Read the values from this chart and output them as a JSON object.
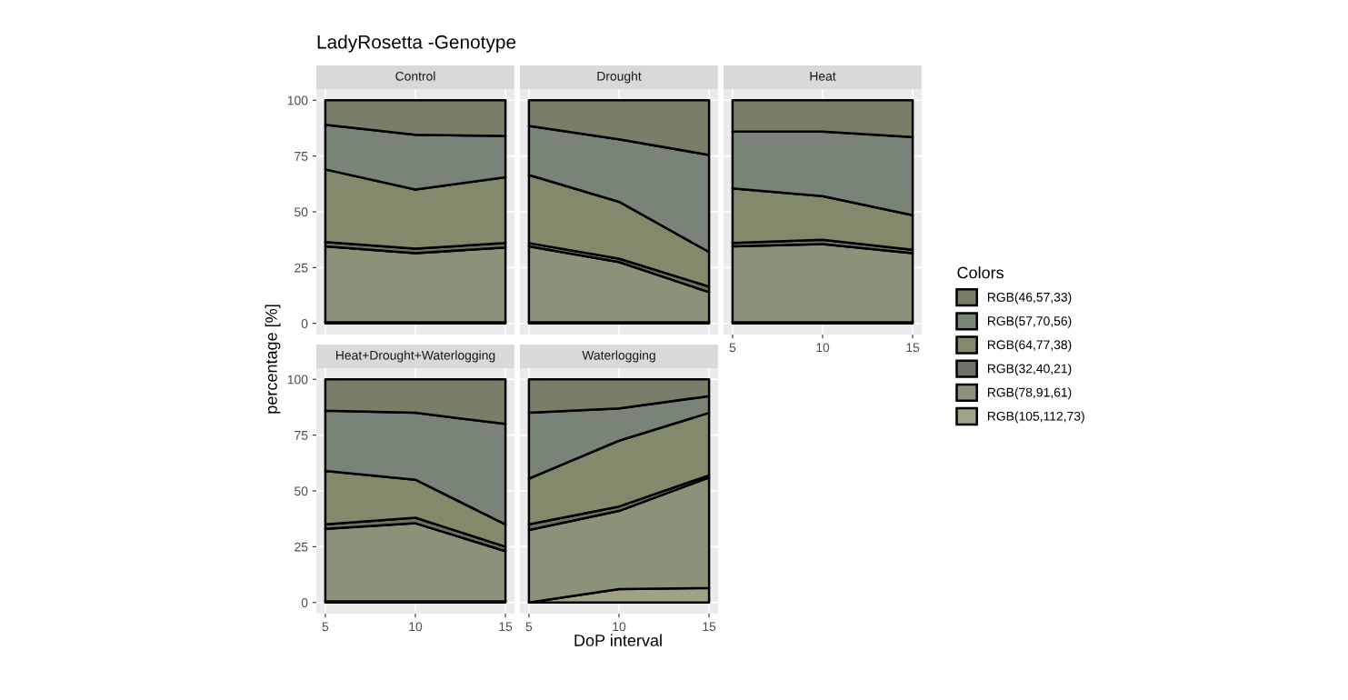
{
  "chart_data": [
    {
      "type": "area",
      "stacked": true,
      "title": "LadyRosetta -Genotype",
      "subtitle": "Control",
      "ylabel": "percentage [%]",
      "legend_title": "Colors",
      "legend": "right",
      "grid": true,
      "tick_labels": "y",
      "x": [
        5,
        10,
        15
      ],
      "xlim": [
        4.5,
        15.5
      ],
      "xticks": [
        5,
        10,
        15
      ],
      "ylim": [
        -5,
        105
      ],
      "yticks": [
        0,
        25,
        50,
        75,
        100
      ],
      "series": [
        {
          "name": "RGB(105,112,73)",
          "color": "#a0a287",
          "values": [
            0.5,
            0.5,
            0.5
          ]
        },
        {
          "name": "RGB(78,91,61)",
          "color": "#8a9379",
          "values": [
            34,
            31,
            33.5
          ]
        },
        {
          "name": "RGB(32,40,21)",
          "color": "#6e7262",
          "values": [
            2,
            2,
            2
          ]
        },
        {
          "name": "RGB(64,77,38)",
          "color": "#838a6c",
          "values": [
            32.5,
            26.5,
            29.5
          ]
        },
        {
          "name": "RGB(57,70,56)",
          "color": "#7a8378",
          "values": [
            20,
            24.5,
            18.5
          ]
        },
        {
          "name": "RGB(46,57,33)",
          "color": "#797e69",
          "values": [
            11,
            15.5,
            16
          ]
        }
      ]
    },
    {
      "type": "area",
      "stacked": true,
      "subtitle": "Drought",
      "grid": true,
      "tick_labels": false,
      "x": [
        5,
        10,
        15
      ],
      "xlim": [
        4.5,
        15.5
      ],
      "xticks": [
        5,
        10,
        15
      ],
      "ylim": [
        -5,
        105
      ],
      "yticks": [
        0,
        25,
        50,
        75,
        100
      ],
      "series": [
        {
          "name": "RGB(105,112,73)",
          "color": "#a0a287",
          "values": [
            0.5,
            0.5,
            0.5
          ]
        },
        {
          "name": "RGB(78,91,61)",
          "color": "#8a9379",
          "values": [
            34,
            27,
            13.5
          ]
        },
        {
          "name": "RGB(32,40,21)",
          "color": "#6e7262",
          "values": [
            1.5,
            1.5,
            2.5
          ]
        },
        {
          "name": "RGB(64,77,38)",
          "color": "#838a6c",
          "values": [
            30.5,
            25.5,
            15.5
          ]
        },
        {
          "name": "RGB(57,70,56)",
          "color": "#7a8378",
          "values": [
            22,
            28,
            43.5
          ]
        },
        {
          "name": "RGB(46,57,33)",
          "color": "#797e69",
          "values": [
            11.5,
            17.5,
            24.5
          ]
        }
      ]
    },
    {
      "type": "area",
      "stacked": true,
      "subtitle": "Heat",
      "grid": true,
      "tick_labels": "x",
      "x": [
        5,
        10,
        15
      ],
      "xlim": [
        4.5,
        15.5
      ],
      "xticks": [
        5,
        10,
        15
      ],
      "ylim": [
        -5,
        105
      ],
      "yticks": [
        0,
        25,
        50,
        75,
        100
      ],
      "series": [
        {
          "name": "RGB(105,112,73)",
          "color": "#a0a287",
          "values": [
            0.5,
            0.5,
            0.5
          ]
        },
        {
          "name": "RGB(78,91,61)",
          "color": "#8a9379",
          "values": [
            34,
            35,
            31
          ]
        },
        {
          "name": "RGB(32,40,21)",
          "color": "#6e7262",
          "values": [
            1.5,
            2,
            1.5
          ]
        },
        {
          "name": "RGB(64,77,38)",
          "color": "#838a6c",
          "values": [
            24.5,
            19.5,
            15.5
          ]
        },
        {
          "name": "RGB(57,70,56)",
          "color": "#7a8378",
          "values": [
            25.5,
            29,
            35
          ]
        },
        {
          "name": "RGB(46,57,33)",
          "color": "#797e69",
          "values": [
            14,
            14,
            16.5
          ]
        }
      ]
    },
    {
      "type": "area",
      "stacked": true,
      "subtitle": "Heat+Drought+Waterlogging",
      "grid": true,
      "x": [
        5,
        10,
        15
      ],
      "xlim": [
        4.5,
        15.5
      ],
      "xticks": [
        5,
        10,
        15
      ],
      "ylim": [
        -5,
        105
      ],
      "yticks": [
        0,
        25,
        50,
        75,
        100
      ],
      "series": [
        {
          "name": "RGB(105,112,73)",
          "color": "#a0a287",
          "values": [
            0.5,
            0.5,
            0.5
          ]
        },
        {
          "name": "RGB(78,91,61)",
          "color": "#8a9379",
          "values": [
            32.5,
            35,
            22.5
          ]
        },
        {
          "name": "RGB(32,40,21)",
          "color": "#6e7262",
          "values": [
            2,
            2.5,
            2
          ]
        },
        {
          "name": "RGB(64,77,38)",
          "color": "#838a6c",
          "values": [
            24,
            17,
            10
          ]
        },
        {
          "name": "RGB(57,70,56)",
          "color": "#7a8378",
          "values": [
            27,
            30,
            45
          ]
        },
        {
          "name": "RGB(46,57,33)",
          "color": "#797e69",
          "values": [
            14,
            15,
            20
          ]
        }
      ]
    },
    {
      "type": "area",
      "stacked": true,
      "subtitle": "Waterlogging",
      "xlabel": "DoP interval",
      "grid": true,
      "tick_labels": "x",
      "x": [
        5,
        10,
        15
      ],
      "xlim": [
        4.5,
        15.5
      ],
      "xticks": [
        5,
        10,
        15
      ],
      "ylim": [
        -5,
        105
      ],
      "yticks": [
        0,
        25,
        50,
        75,
        100
      ],
      "series": [
        {
          "name": "RGB(105,112,73)",
          "color": "#a0a287",
          "values": [
            0,
            6,
            6.5
          ]
        },
        {
          "name": "RGB(78,91,61)",
          "color": "#8a9379",
          "values": [
            32.5,
            35,
            49.5
          ]
        },
        {
          "name": "RGB(32,40,21)",
          "color": "#6e7262",
          "values": [
            2.5,
            2,
            1
          ]
        },
        {
          "name": "RGB(64,77,38)",
          "color": "#838a6c",
          "values": [
            20.5,
            29.5,
            28
          ]
        },
        {
          "name": "RGB(57,70,56)",
          "color": "#7a8378",
          "values": [
            29.5,
            14.5,
            7.5
          ]
        },
        {
          "name": "RGB(46,57,33)",
          "color": "#797e69",
          "values": [
            15,
            13,
            7.5
          ]
        }
      ]
    }
  ]
}
